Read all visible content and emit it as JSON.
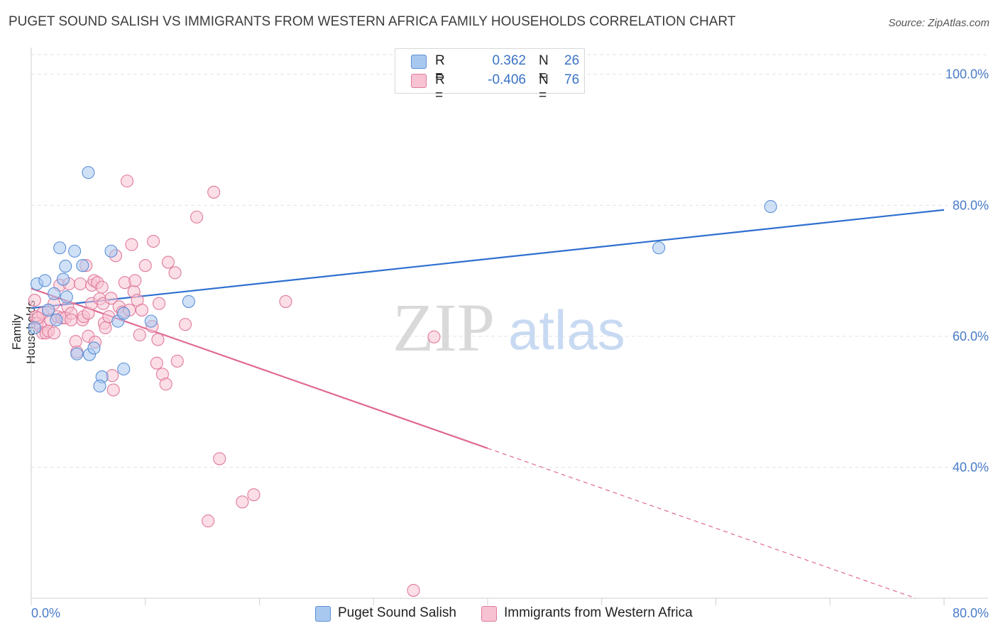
{
  "title": "PUGET SOUND SALISH VS IMMIGRANTS FROM WESTERN AFRICA FAMILY HOUSEHOLDS CORRELATION CHART",
  "source": "Source: ZipAtlas.com",
  "watermark": {
    "zip": "ZIP",
    "atlas": "atlas"
  },
  "legend_top": {
    "rows": [
      {
        "r_label": "R =",
        "r_value": "0.362",
        "n_label": "N =",
        "n_value": "26",
        "color": "#a9c8f0",
        "border": "#5b8fd6"
      },
      {
        "r_label": "R =",
        "r_value": "-0.406",
        "n_label": "N =",
        "n_value": "76",
        "color": "#f7c2d2",
        "border": "#e07a9c"
      }
    ]
  },
  "legend_bottom": [
    {
      "label": "Puget Sound Salish",
      "color": "#a9c8f0",
      "border": "#5b8fd6"
    },
    {
      "label": "Immigrants from Western Africa",
      "color": "#f7c2d2",
      "border": "#e07a9c"
    }
  ],
  "chart_data": {
    "type": "scatter",
    "title": "PUGET SOUND SALISH VS IMMIGRANTS FROM WESTERN AFRICA FAMILY HOUSEHOLDS CORRELATION CHART",
    "xlabel": "",
    "ylabel": "Family Households",
    "x_tick_labels": [
      "0.0%",
      "80.0%"
    ],
    "y_tick_labels": [
      "100.0%",
      "80.0%",
      "60.0%",
      "40.0%"
    ],
    "xlim": [
      0,
      80
    ],
    "ylim": [
      20,
      103
    ],
    "grid": true,
    "legend_position": "top-center",
    "series": [
      {
        "name": "Puget Sound Salish",
        "color": "#5b8fd6",
        "fill": "#a9c8f0",
        "points": [
          [
            0.5,
            68.0
          ],
          [
            1.2,
            68.5
          ],
          [
            1.5,
            64.0
          ],
          [
            2.0,
            66.5
          ],
          [
            2.2,
            62.5
          ],
          [
            2.5,
            73.5
          ],
          [
            2.8,
            68.7
          ],
          [
            3.0,
            70.7
          ],
          [
            3.1,
            66.0
          ],
          [
            3.8,
            73.0
          ],
          [
            4.0,
            57.3
          ],
          [
            4.5,
            70.8
          ],
          [
            5.0,
            85.0
          ],
          [
            5.1,
            57.2
          ],
          [
            5.5,
            58.2
          ],
          [
            6.2,
            53.8
          ],
          [
            6.0,
            52.4
          ],
          [
            7.0,
            73.0
          ],
          [
            7.6,
            62.3
          ],
          [
            8.1,
            63.5
          ],
          [
            8.1,
            55.0
          ],
          [
            10.5,
            62.3
          ],
          [
            13.8,
            65.3
          ],
          [
            0.3,
            61.3
          ],
          [
            55.0,
            73.5
          ],
          [
            64.8,
            79.8
          ]
        ],
        "trend": {
          "x0": 0,
          "y0": 64.3,
          "x1": 80,
          "y1": 79.3
        }
      },
      {
        "name": "Immigrants from Western Africa",
        "color": "#e07a9c",
        "fill": "#f7c2d2",
        "points": [
          [
            0.3,
            65.5
          ],
          [
            0.4,
            63.0
          ],
          [
            0.5,
            62.0
          ],
          [
            0.8,
            61.5
          ],
          [
            1.0,
            63.5
          ],
          [
            1.0,
            60.5
          ],
          [
            1.3,
            60.5
          ],
          [
            1.5,
            60.8
          ],
          [
            1.5,
            64.0
          ],
          [
            1.7,
            62.5
          ],
          [
            2.0,
            65.0
          ],
          [
            2.0,
            60.5
          ],
          [
            2.3,
            63.0
          ],
          [
            2.5,
            67.8
          ],
          [
            2.7,
            62.8
          ],
          [
            3.0,
            62.8
          ],
          [
            3.2,
            64.5
          ],
          [
            3.3,
            68.0
          ],
          [
            3.5,
            63.5
          ],
          [
            3.5,
            62.5
          ],
          [
            3.9,
            59.2
          ],
          [
            4.0,
            57.6
          ],
          [
            4.3,
            68.0
          ],
          [
            4.5,
            62.5
          ],
          [
            4.6,
            63.0
          ],
          [
            4.8,
            70.8
          ],
          [
            5.0,
            63.5
          ],
          [
            5.0,
            60.0
          ],
          [
            5.3,
            67.8
          ],
          [
            5.3,
            65.0
          ],
          [
            5.5,
            68.5
          ],
          [
            5.6,
            59.1
          ],
          [
            5.8,
            68.2
          ],
          [
            6.0,
            65.7
          ],
          [
            6.2,
            67.5
          ],
          [
            6.3,
            65.0
          ],
          [
            6.4,
            62.0
          ],
          [
            6.5,
            61.3
          ],
          [
            6.8,
            63.0
          ],
          [
            7.0,
            65.8
          ],
          [
            7.1,
            54.0
          ],
          [
            7.2,
            51.8
          ],
          [
            7.4,
            72.3
          ],
          [
            7.7,
            64.5
          ],
          [
            8.0,
            63.7
          ],
          [
            8.2,
            68.2
          ],
          [
            8.4,
            83.7
          ],
          [
            8.6,
            64.0
          ],
          [
            8.8,
            74.0
          ],
          [
            9.0,
            66.8
          ],
          [
            9.1,
            68.5
          ],
          [
            9.3,
            65.5
          ],
          [
            9.5,
            60.2
          ],
          [
            9.7,
            64.0
          ],
          [
            10.0,
            70.8
          ],
          [
            10.6,
            61.5
          ],
          [
            10.7,
            74.5
          ],
          [
            11.0,
            55.9
          ],
          [
            11.1,
            59.5
          ],
          [
            11.2,
            65.0
          ],
          [
            11.5,
            54.2
          ],
          [
            11.8,
            52.7
          ],
          [
            12.0,
            71.3
          ],
          [
            12.6,
            69.7
          ],
          [
            12.8,
            56.2
          ],
          [
            13.5,
            61.8
          ],
          [
            14.5,
            78.2
          ],
          [
            16.0,
            82.0
          ],
          [
            16.5,
            41.3
          ],
          [
            15.5,
            31.8
          ],
          [
            18.5,
            34.7
          ],
          [
            19.5,
            35.8
          ],
          [
            22.3,
            65.3
          ],
          [
            35.3,
            59.9
          ],
          [
            33.5,
            21.2
          ],
          [
            0.6,
            62.8
          ]
        ],
        "trend": {
          "x0": 0,
          "y0": 67.3,
          "x1": 40,
          "y1": 42.9
        },
        "trend_extension": {
          "x0": 40,
          "y0": 42.9,
          "x1": 77.5,
          "y1": 20.0
        }
      }
    ]
  }
}
